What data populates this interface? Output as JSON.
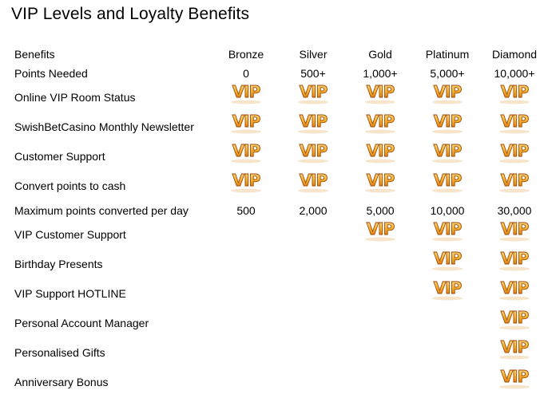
{
  "title": "VIP Levels and Loyalty Benefits",
  "header": {
    "benefits_label": "Benefits",
    "levels": [
      "Bronze",
      "Silver",
      "Gold",
      "Platinum",
      "Diamond"
    ]
  },
  "badge_text": "VIP",
  "badge_icon": "vip-badge-icon",
  "colors": {
    "badge_light": "#fde7a0",
    "badge_mid": "#f6ae2d",
    "badge_dark": "#c8620a",
    "badge_outline": "#a04e06"
  },
  "rows": [
    {
      "label": "Points Needed",
      "type": "text",
      "values": [
        "0",
        "500+",
        "1,000+",
        "5,000+",
        "10,000+"
      ]
    },
    {
      "label": "Online VIP Room Status",
      "type": "badge",
      "values": [
        true,
        true,
        true,
        true,
        true
      ]
    },
    {
      "label": "SwishBetCasino Monthly Newsletter",
      "type": "badge",
      "values": [
        true,
        true,
        true,
        true,
        true
      ]
    },
    {
      "label": "Customer Support",
      "type": "badge",
      "values": [
        true,
        true,
        true,
        true,
        true
      ]
    },
    {
      "label": "Convert points to cash",
      "type": "badge",
      "values": [
        true,
        true,
        true,
        true,
        true
      ]
    },
    {
      "label": "Maximum points converted per day",
      "type": "text",
      "values": [
        "500",
        "2,000",
        "5,000",
        "10,000",
        "30,000"
      ]
    },
    {
      "label": "VIP Customer Support",
      "type": "badge",
      "values": [
        false,
        false,
        true,
        true,
        true
      ]
    },
    {
      "label": "Birthday Presents",
      "type": "badge",
      "values": [
        false,
        false,
        false,
        true,
        true
      ]
    },
    {
      "label": "VIP Support HOTLINE",
      "type": "badge",
      "values": [
        false,
        false,
        false,
        true,
        true
      ]
    },
    {
      "label": "Personal Account Manager",
      "type": "badge",
      "values": [
        false,
        false,
        false,
        false,
        true
      ]
    },
    {
      "label": "Personalised Gifts",
      "type": "badge",
      "values": [
        false,
        false,
        false,
        false,
        true
      ]
    },
    {
      "label": "Anniversary Bonus",
      "type": "badge",
      "values": [
        false,
        false,
        false,
        false,
        true
      ]
    }
  ]
}
